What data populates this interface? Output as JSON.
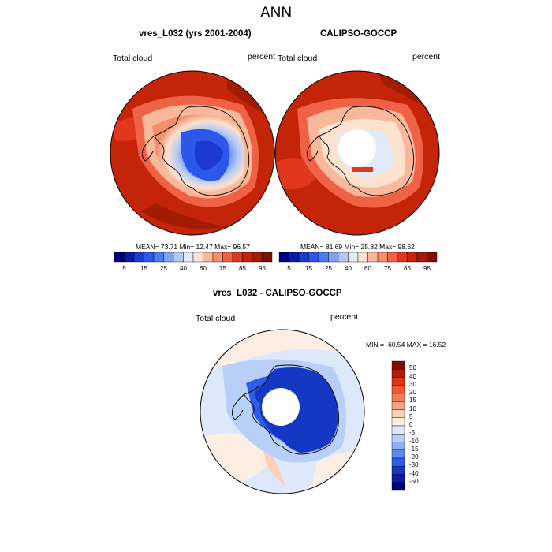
{
  "figure": {
    "title": "ANN"
  },
  "panels": [
    {
      "title": "vres_L032 (yrs 2001-2004)",
      "variable": "Total cloud",
      "units": "percent",
      "stats": "MEAN=  73.71  Min=  12.47  Max=  96.57",
      "colorbar_ticks": [
        "5",
        "15",
        "25",
        "40",
        "60",
        "75",
        "85",
        "95"
      ]
    },
    {
      "title": "CALIPSO-GOCCP",
      "variable": "Total cloud",
      "units": "percent",
      "stats": "MEAN=  81.69  Min=  25.82  Max=  98.62",
      "colorbar_ticks": [
        "5",
        "15",
        "25",
        "40",
        "60",
        "75",
        "85",
        "95"
      ]
    },
    {
      "title": "vres_L032 - CALIPSO-GOCCP",
      "variable": "Total cloud",
      "units": "percent",
      "stats": "MIN = -60.54 MAX =  16.52",
      "colorbar_ticks": [
        "50",
        "40",
        "30",
        "20",
        "15",
        "10",
        "5",
        "0",
        "-5",
        "-10",
        "-15",
        "-20",
        "-30",
        "-40",
        "-50"
      ]
    }
  ],
  "colors": {
    "abs_scale": [
      "#00007f",
      "#0a1ca8",
      "#1d3ad0",
      "#2c57ea",
      "#4c7cf1",
      "#7fa3f4",
      "#b2c9f6",
      "#e0ebfa",
      "#fde2cf",
      "#f8b99b",
      "#f48f6e",
      "#ef6245",
      "#e0381d",
      "#c42508",
      "#a21c04",
      "#7f1000"
    ],
    "diff_scale": [
      "#7f1000",
      "#b11d05",
      "#dd3816",
      "#f0582f",
      "#f27c5a",
      "#f6a283",
      "#fbd0b7",
      "#fdeee4",
      "#dde9fb",
      "#b8cff7",
      "#8eb0f4",
      "#5f89f0",
      "#2f5ce9",
      "#1438c3",
      "#071fa2",
      "#00007f"
    ]
  }
}
